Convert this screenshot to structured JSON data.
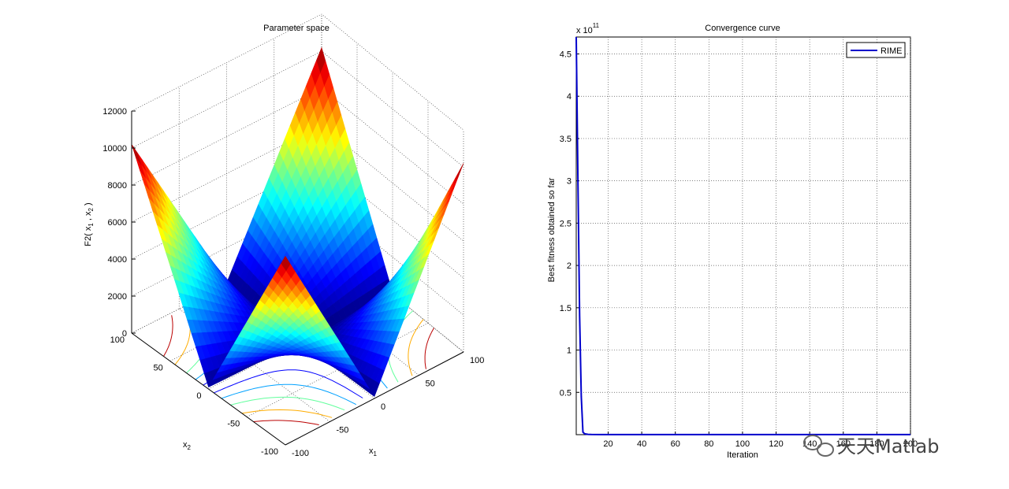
{
  "chart_data": [
    {
      "type": "surface3d",
      "title": "Parameter space",
      "xlabel": "x",
      "xlabel_sub": "1",
      "ylabel": "x",
      "ylabel_sub": "2",
      "zlabel": "F2( x",
      "zlabel_sub1": "1",
      "zlabel_mid": " , x",
      "zlabel_sub2": "2",
      "zlabel_end": " )",
      "xlim": [
        -100,
        100
      ],
      "ylim": [
        -100,
        100
      ],
      "zlim": [
        0,
        12000
      ],
      "x_ticks": [
        "-100",
        "-50",
        "0",
        "50",
        "100"
      ],
      "y_ticks": [
        "-100",
        "-50",
        "0",
        "50",
        "100"
      ],
      "z_ticks": [
        "0",
        "2000",
        "4000",
        "6000",
        "8000",
        "10000",
        "12000"
      ],
      "grid": true,
      "colormap": "jet"
    },
    {
      "type": "line",
      "title": "Convergence curve",
      "xlabel": "Iteration",
      "ylabel": "Best fitness obtained so far",
      "y_exponent": "x 10",
      "y_exponent_power": "11",
      "xlim": [
        1,
        200
      ],
      "ylim": [
        0,
        4.7
      ],
      "x_ticks": [
        "20",
        "40",
        "60",
        "80",
        "100",
        "120",
        "140",
        "160",
        "180",
        "200"
      ],
      "y_ticks": [
        "0.5",
        "1",
        "1.5",
        "2",
        "2.5",
        "3",
        "3.5",
        "4",
        "4.5"
      ],
      "grid": true,
      "legend_position": "top-right",
      "series": [
        {
          "name": "RIME",
          "color": "#0000cc",
          "x": [
            1,
            2,
            3,
            4,
            5,
            6,
            8,
            10,
            20,
            40,
            60,
            80,
            100,
            120,
            140,
            160,
            180,
            200
          ],
          "y": [
            4.7,
            3.05,
            1.4,
            0.45,
            0.03,
            0.01,
            0.004,
            0.002,
            0.001,
            0.001,
            0.001,
            0.001,
            0.001,
            0.001,
            0.001,
            0.001,
            0.001,
            0.001
          ]
        }
      ]
    }
  ],
  "watermark": {
    "text": "天天Matlab",
    "icon": "wechat-icon"
  }
}
